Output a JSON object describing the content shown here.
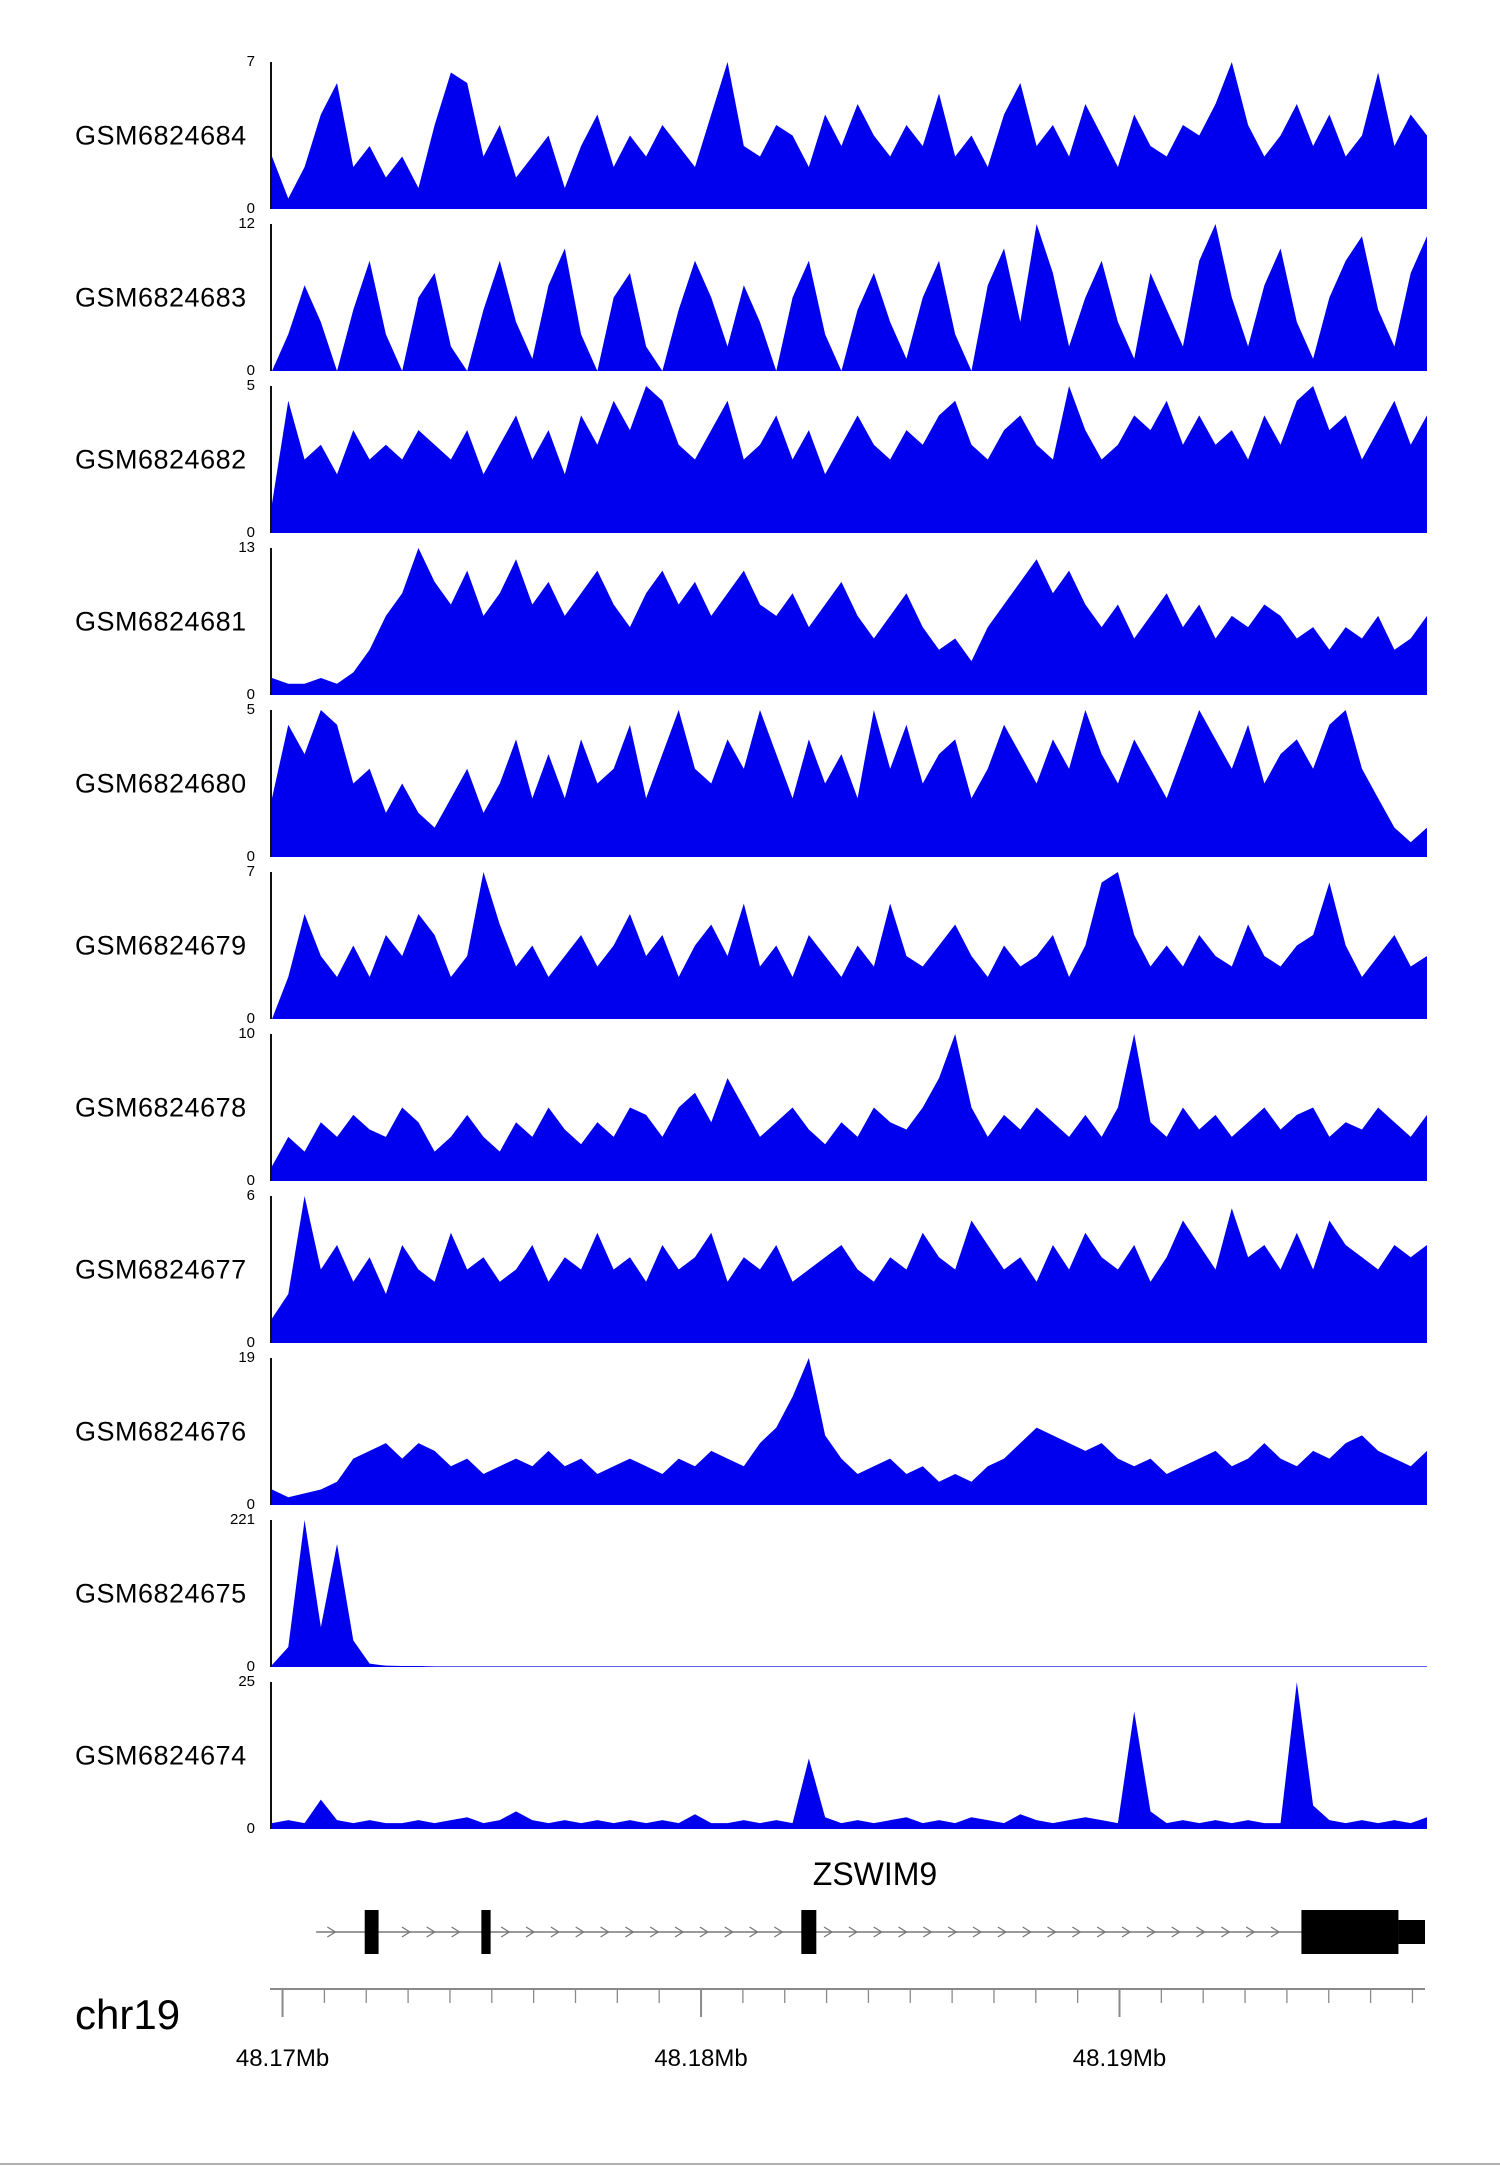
{
  "chart_data": {
    "type": "area",
    "chromosome": "chr19",
    "track_color": "#0000EE",
    "gene": {
      "name": "ZSWIM9",
      "strand": "right",
      "line_start": 0.04,
      "line_end": 1.0,
      "exons": [
        {
          "start": 0.082,
          "end": 0.094,
          "h": "full"
        },
        {
          "start": 0.183,
          "end": 0.191,
          "h": "full"
        },
        {
          "start": 0.46,
          "end": 0.473,
          "h": "full"
        },
        {
          "start": 0.893,
          "end": 0.977,
          "h": "full"
        },
        {
          "start": 0.977,
          "end": 1.0,
          "h": "half"
        }
      ]
    },
    "axis": {
      "start_mb": 48.1697,
      "end_mb": 48.1973,
      "minor_step_mb": 0.001,
      "major_ticks": [
        {
          "mb": 48.17,
          "label": "48.17Mb"
        },
        {
          "mb": 48.18,
          "label": "48.18Mb"
        },
        {
          "mb": 48.19,
          "label": "48.19Mb"
        }
      ]
    },
    "tracks": [
      {
        "label": "GSM6824684",
        "ymax": 7,
        "values": [
          2.5,
          0.5,
          2,
          4.5,
          6,
          2,
          3,
          1.5,
          2.5,
          1,
          4,
          6.5,
          6,
          2.5,
          4,
          1.5,
          2.5,
          3.5,
          1,
          3,
          4.5,
          2,
          3.5,
          2.5,
          4,
          3,
          2,
          4.5,
          7,
          3,
          2.5,
          4,
          3.5,
          2,
          4.5,
          3,
          5,
          3.5,
          2.5,
          4,
          3,
          5.5,
          2.5,
          3.5,
          2,
          4.5,
          6,
          3,
          4,
          2.5,
          5,
          3.5,
          2,
          4.5,
          3,
          2.5,
          4,
          3.5,
          5,
          7,
          4,
          2.5,
          3.5,
          5,
          3,
          4.5,
          2.5,
          3.5,
          6.5,
          3,
          4.5,
          3.5
        ]
      },
      {
        "label": "GSM6824683",
        "ymax": 12,
        "values": [
          0,
          3,
          7,
          4,
          0,
          5,
          9,
          3,
          0,
          6,
          8,
          2,
          0,
          5,
          9,
          4,
          1,
          7,
          10,
          3,
          0,
          6,
          8,
          2,
          0,
          5,
          9,
          6,
          2,
          7,
          4,
          0,
          6,
          9,
          3,
          0,
          5,
          8,
          4,
          1,
          6,
          9,
          3,
          0,
          7,
          10,
          4,
          12,
          8,
          2,
          6,
          9,
          4,
          1,
          8,
          5,
          2,
          9,
          12,
          6,
          2,
          7,
          10,
          4,
          1,
          6,
          9,
          11,
          5,
          2,
          8,
          11
        ]
      },
      {
        "label": "GSM6824682",
        "ymax": 5,
        "values": [
          1,
          4.5,
          2.5,
          3,
          2,
          3.5,
          2.5,
          3,
          2.5,
          3.5,
          3,
          2.5,
          3.5,
          2,
          3,
          4,
          2.5,
          3.5,
          2,
          4,
          3,
          4.5,
          3.5,
          5,
          4.5,
          3,
          2.5,
          3.5,
          4.5,
          2.5,
          3,
          4,
          2.5,
          3.5,
          2,
          3,
          4,
          3,
          2.5,
          3.5,
          3,
          4,
          4.5,
          3,
          2.5,
          3.5,
          4,
          3,
          2.5,
          5,
          3.5,
          2.5,
          3,
          4,
          3.5,
          4.5,
          3,
          4,
          3,
          3.5,
          2.5,
          4,
          3,
          4.5,
          5,
          3.5,
          4,
          2.5,
          3.5,
          4.5,
          3,
          4
        ]
      },
      {
        "label": "GSM6824681",
        "ymax": 13,
        "values": [
          1.5,
          1,
          1,
          1.5,
          1,
          2,
          4,
          7,
          9,
          13,
          10,
          8,
          11,
          7,
          9,
          12,
          8,
          10,
          7,
          9,
          11,
          8,
          6,
          9,
          11,
          8,
          10,
          7,
          9,
          11,
          8,
          7,
          9,
          6,
          8,
          10,
          7,
          5,
          7,
          9,
          6,
          4,
          5,
          3,
          6,
          8,
          10,
          12,
          9,
          11,
          8,
          6,
          8,
          5,
          7,
          9,
          6,
          8,
          5,
          7,
          6,
          8,
          7,
          5,
          6,
          4,
          6,
          5,
          7,
          4,
          5,
          7
        ]
      },
      {
        "label": "GSM6824680",
        "ymax": 5,
        "values": [
          2,
          4.5,
          3.5,
          5,
          4.5,
          2.5,
          3,
          1.5,
          2.5,
          1.5,
          1,
          2,
          3,
          1.5,
          2.5,
          4,
          2,
          3.5,
          2,
          4,
          2.5,
          3,
          4.5,
          2,
          3.5,
          5,
          3,
          2.5,
          4,
          3,
          5,
          3.5,
          2,
          4,
          2.5,
          3.5,
          2,
          5,
          3,
          4.5,
          2.5,
          3.5,
          4,
          2,
          3,
          4.5,
          3.5,
          2.5,
          4,
          3,
          5,
          3.5,
          2.5,
          4,
          3,
          2,
          3.5,
          5,
          4,
          3,
          4.5,
          2.5,
          3.5,
          4,
          3,
          4.5,
          5,
          3,
          2,
          1,
          0.5,
          1
        ]
      },
      {
        "label": "GSM6824679",
        "ymax": 7,
        "values": [
          0,
          2,
          5,
          3,
          2,
          3.5,
          2,
          4,
          3,
          5,
          4,
          2,
          3,
          7,
          4.5,
          2.5,
          3.5,
          2,
          3,
          4,
          2.5,
          3.5,
          5,
          3,
          4,
          2,
          3.5,
          4.5,
          3,
          5.5,
          2.5,
          3.5,
          2,
          4,
          3,
          2,
          3.5,
          2.5,
          5.5,
          3,
          2.5,
          3.5,
          4.5,
          3,
          2,
          3.5,
          2.5,
          3,
          4,
          2,
          3.5,
          6.5,
          7,
          4,
          2.5,
          3.5,
          2.5,
          4,
          3,
          2.5,
          4.5,
          3,
          2.5,
          3.5,
          4,
          6.5,
          3.5,
          2,
          3,
          4,
          2.5,
          3
        ]
      },
      {
        "label": "GSM6824678",
        "ymax": 10,
        "values": [
          1,
          3,
          2,
          4,
          3,
          4.5,
          3.5,
          3,
          5,
          4,
          2,
          3,
          4.5,
          3,
          2,
          4,
          3,
          5,
          3.5,
          2.5,
          4,
          3,
          5,
          4.5,
          3,
          5,
          6,
          4,
          7,
          5,
          3,
          4,
          5,
          3.5,
          2.5,
          4,
          3,
          5,
          4,
          3.5,
          5,
          7,
          10,
          5,
          3,
          4.5,
          3.5,
          5,
          4,
          3,
          4.5,
          3,
          5,
          10,
          4,
          3,
          5,
          3.5,
          4.5,
          3,
          4,
          5,
          3.5,
          4.5,
          5,
          3,
          4,
          3.5,
          5,
          4,
          3,
          4.5
        ]
      },
      {
        "label": "GSM6824677",
        "ymax": 6,
        "values": [
          1,
          2,
          6,
          3,
          4,
          2.5,
          3.5,
          2,
          4,
          3,
          2.5,
          4.5,
          3,
          3.5,
          2.5,
          3,
          4,
          2.5,
          3.5,
          3,
          4.5,
          3,
          3.5,
          2.5,
          4,
          3,
          3.5,
          4.5,
          2.5,
          3.5,
          3,
          4,
          2.5,
          3,
          3.5,
          4,
          3,
          2.5,
          3.5,
          3,
          4.5,
          3.5,
          3,
          5,
          4,
          3,
          3.5,
          2.5,
          4,
          3,
          4.5,
          3.5,
          3,
          4,
          2.5,
          3.5,
          5,
          4,
          3,
          5.5,
          3.5,
          4,
          3,
          4.5,
          3,
          5,
          4,
          3.5,
          3,
          4,
          3.5,
          4
        ]
      },
      {
        "label": "GSM6824676",
        "ymax": 19,
        "values": [
          2,
          1,
          1.5,
          2,
          3,
          6,
          7,
          8,
          6,
          8,
          7,
          5,
          6,
          4,
          5,
          6,
          5,
          7,
          5,
          6,
          4,
          5,
          6,
          5,
          4,
          6,
          5,
          7,
          6,
          5,
          8,
          10,
          14,
          19,
          9,
          6,
          4,
          5,
          6,
          4,
          5,
          3,
          4,
          3,
          5,
          6,
          8,
          10,
          9,
          8,
          7,
          8,
          6,
          5,
          6,
          4,
          5,
          6,
          7,
          5,
          6,
          8,
          6,
          5,
          7,
          6,
          8,
          9,
          7,
          6,
          5,
          7
        ]
      },
      {
        "label": "GSM6824675",
        "ymax": 221,
        "values": [
          3,
          30,
          221,
          60,
          185,
          40,
          5,
          2,
          1.5,
          1.5,
          1,
          1,
          1,
          1,
          1,
          1,
          1,
          1,
          1,
          1,
          1,
          1,
          1,
          1,
          1,
          1,
          1,
          1,
          1,
          1,
          1,
          1,
          1,
          1,
          1,
          1,
          1,
          1,
          1,
          1,
          1,
          1,
          1,
          1,
          1,
          1,
          1,
          1,
          1,
          1,
          1,
          1,
          1,
          1,
          1,
          1,
          1,
          1,
          1,
          1,
          1,
          1,
          1,
          1,
          1,
          1,
          1,
          1,
          1,
          1,
          1,
          1
        ]
      },
      {
        "label": "GSM6824674",
        "ymax": 25,
        "values": [
          1,
          1.5,
          1,
          5,
          1.5,
          1,
          1.5,
          1,
          1,
          1.5,
          1,
          1.5,
          2,
          1,
          1.5,
          3,
          1.5,
          1,
          1.5,
          1,
          1.5,
          1,
          1.5,
          1,
          1.5,
          1,
          2.5,
          1,
          1,
          1.5,
          1,
          1.5,
          1,
          12,
          2,
          1,
          1.5,
          1,
          1.5,
          2,
          1,
          1.5,
          1,
          2,
          1.5,
          1,
          2.5,
          1.5,
          1,
          1.5,
          2,
          1.5,
          1,
          20,
          3,
          1,
          1.5,
          1,
          1.5,
          1,
          1.5,
          1,
          1,
          25,
          4,
          1.5,
          1,
          1.5,
          1,
          1.5,
          1,
          2
        ]
      }
    ]
  }
}
